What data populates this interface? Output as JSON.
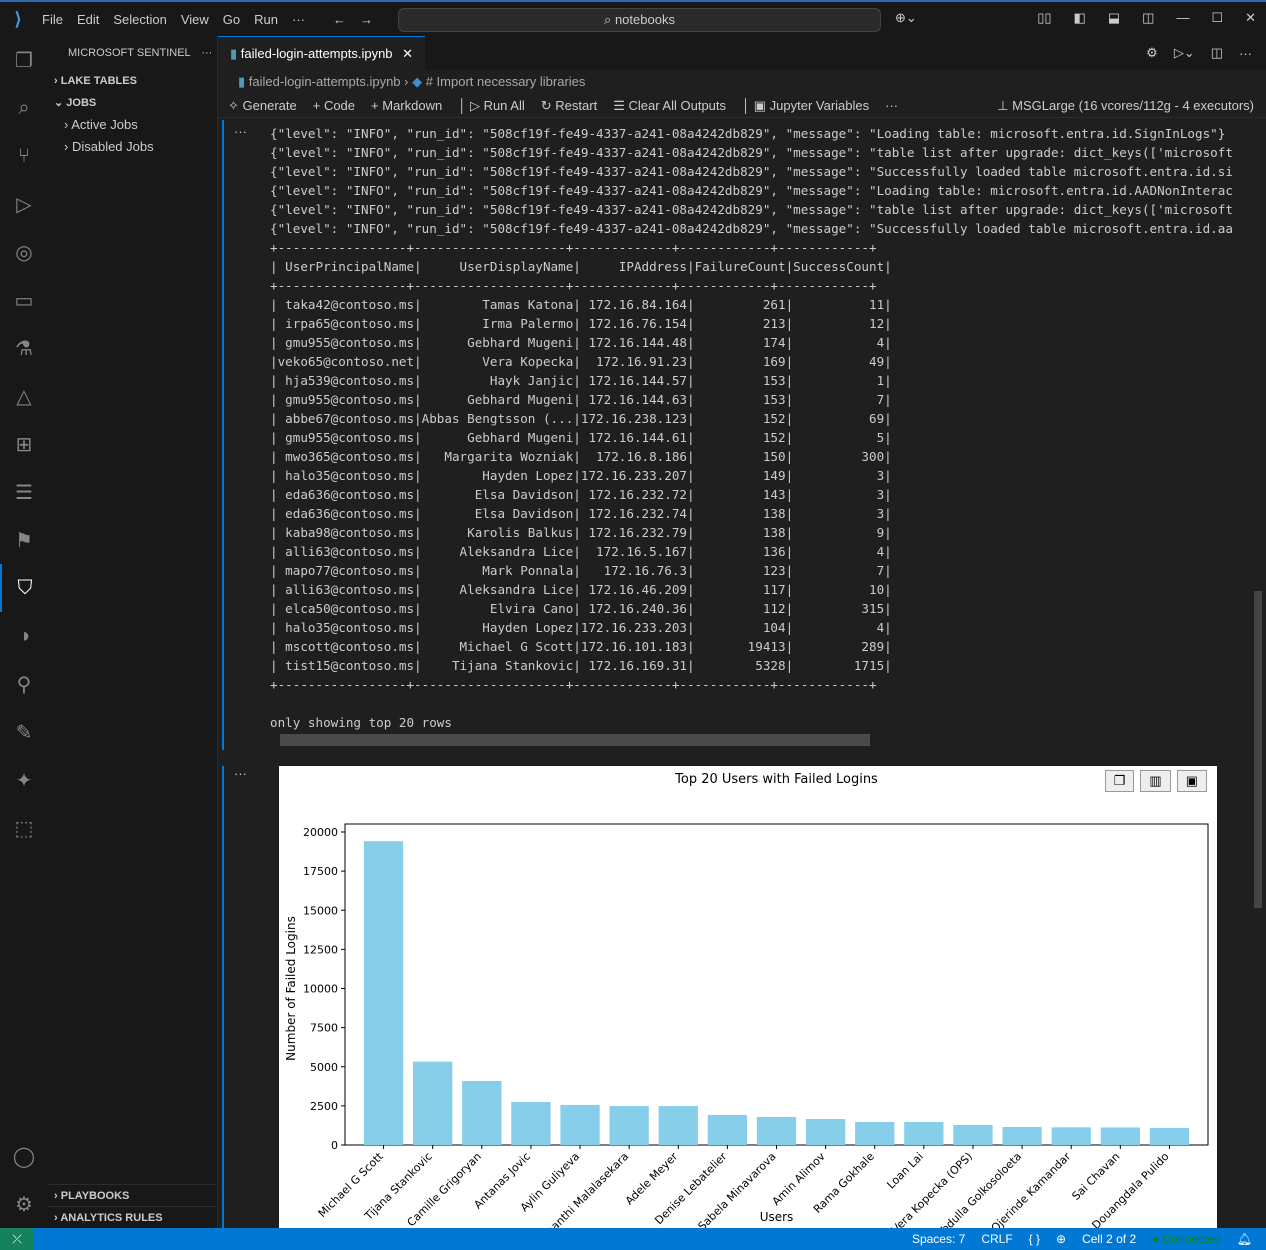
{
  "titlebar": {
    "menu": [
      "File",
      "Edit",
      "Selection",
      "View",
      "Go",
      "Run",
      "···"
    ],
    "search": "notebooks"
  },
  "sidebar": {
    "title": "MICROSOFT SENTINEL",
    "sections": {
      "lake": "LAKE TABLES",
      "jobs": "JOBS",
      "playbooks": "PLAYBOOKS",
      "analytics": "ANALYTICS RULES"
    },
    "jobs_items": [
      "Active Jobs",
      "Disabled Jobs"
    ]
  },
  "editor": {
    "tab": "failed-login-attempts.ipynb",
    "breadcrumb": [
      "failed-login-attempts.ipynb",
      "# Import necessary libraries"
    ],
    "toolbar": [
      "Generate",
      "Code",
      "Markdown",
      "Run All",
      "Restart",
      "Clear All Outputs",
      "Jupyter Variables",
      "···"
    ],
    "kernel": "MSGLarge (16 vcores/112g - 4 executors)"
  },
  "output": {
    "logs": [
      "{\"level\": \"INFO\", \"run_id\": \"508cf19f-fe49-4337-a241-08a4242db829\", \"message\": \"Loading table: microsoft.entra.id.SignInLogs\"}",
      "{\"level\": \"INFO\", \"run_id\": \"508cf19f-fe49-4337-a241-08a4242db829\", \"message\": \"table list after upgrade: dict_keys(['microsoft",
      "{\"level\": \"INFO\", \"run_id\": \"508cf19f-fe49-4337-a241-08a4242db829\", \"message\": \"Successfully loaded table microsoft.entra.id.si",
      "{\"level\": \"INFO\", \"run_id\": \"508cf19f-fe49-4337-a241-08a4242db829\", \"message\": \"Loading table: microsoft.entra.id.AADNonInterac",
      "{\"level\": \"INFO\", \"run_id\": \"508cf19f-fe49-4337-a241-08a4242db829\", \"message\": \"table list after upgrade: dict_keys(['microsoft",
      "{\"level\": \"INFO\", \"run_id\": \"508cf19f-fe49-4337-a241-08a4242db829\", \"message\": \"Successfully loaded table microsoft.entra.id.aa"
    ],
    "table": [
      "+-----------------+--------------------+-------------+------------+------------+",
      "| UserPrincipalName|     UserDisplayName|     IPAddress|FailureCount|SuccessCount|",
      "+-----------------+--------------------+-------------+------------+------------+",
      "| taka42@contoso.ms|        Tamas Katona| 172.16.84.164|         261|          11|",
      "| irpa65@contoso.ms|        Irma Palermo| 172.16.76.154|         213|          12|",
      "| gmu955@contoso.ms|      Gebhard Mugeni| 172.16.144.48|         174|           4|",
      "|veko65@contoso.net|        Vera Kopecka|  172.16.91.23|         169|          49|",
      "| hja539@contoso.ms|         Hayk Janjic| 172.16.144.57|         153|           1|",
      "| gmu955@contoso.ms|      Gebhard Mugeni| 172.16.144.63|         153|           7|",
      "| abbe67@contoso.ms|Abbas Bengtsson (...|172.16.238.123|         152|          69|",
      "| gmu955@contoso.ms|      Gebhard Mugeni| 172.16.144.61|         152|           5|",
      "| mwo365@contoso.ms|   Margarita Wozniak|  172.16.8.186|         150|         300|",
      "| halo35@contoso.ms|        Hayden Lopez|172.16.233.207|         149|           3|",
      "| eda636@contoso.ms|       Elsa Davidson| 172.16.232.72|         143|           3|",
      "| eda636@contoso.ms|       Elsa Davidson| 172.16.232.74|         138|           3|",
      "| kaba98@contoso.ms|      Karolis Balkus| 172.16.232.79|         138|           9|",
      "| alli63@contoso.ms|     Aleksandra Lice|  172.16.5.167|         136|           4|",
      "| mapo77@contoso.ms|        Mark Ponnala|   172.16.76.3|         123|           7|",
      "| alli63@contoso.ms|     Aleksandra Lice| 172.16.46.209|         117|          10|",
      "| elca50@contoso.ms|         Elvira Cano| 172.16.240.36|         112|         315|",
      "| halo35@contoso.ms|        Hayden Lopez|172.16.233.203|         104|           4|",
      "| mscott@contoso.ms|     Michael G Scott|172.16.101.183|       19413|         289|",
      "| tist15@contoso.ms|    Tijana Stankovic| 172.16.169.31|        5328|        1715|",
      "+-----------------+--------------------+-------------+------------+------------+"
    ],
    "footer": "only showing top 20 rows"
  },
  "chart_data": {
    "type": "bar",
    "title": "Top 20 Users with Failed Logins",
    "xlabel": "Users",
    "ylabel": "Number of Failed Logins",
    "ylim": [
      0,
      20000
    ],
    "yticks": [
      0,
      2500,
      5000,
      7500,
      10000,
      12500,
      15000,
      17500,
      20000
    ],
    "color": "#87ceeb",
    "categories": [
      "Michael G Scott",
      "Tijana Stankovic",
      "Camille Grigoryan",
      "Antanas Jovic",
      "Aylin Guliyeva",
      "Shanthi Malalasekara",
      "Adele Meyer",
      "Denise Lebatelier",
      "Sabela Minavarova",
      "Amin Alimov",
      "Rama Gokhale",
      "Loan Lai",
      "Vera Kopecka (OPS)",
      "Abdulla Golkosoloeta",
      "Ojerinde Kamandar",
      "Sai Chavan",
      "Douangdala Pulido"
    ],
    "values": [
      19413,
      5328,
      4090,
      2750,
      2560,
      2490,
      2490,
      1920,
      1790,
      1660,
      1470,
      1470,
      1280,
      1150,
      1130,
      1120,
      1090
    ]
  },
  "statusbar": {
    "spaces": "Spaces: 7",
    "eol": "CRLF",
    "braces": "{ }",
    "cell": "Cell 2 of 2",
    "connected": "Connected"
  }
}
